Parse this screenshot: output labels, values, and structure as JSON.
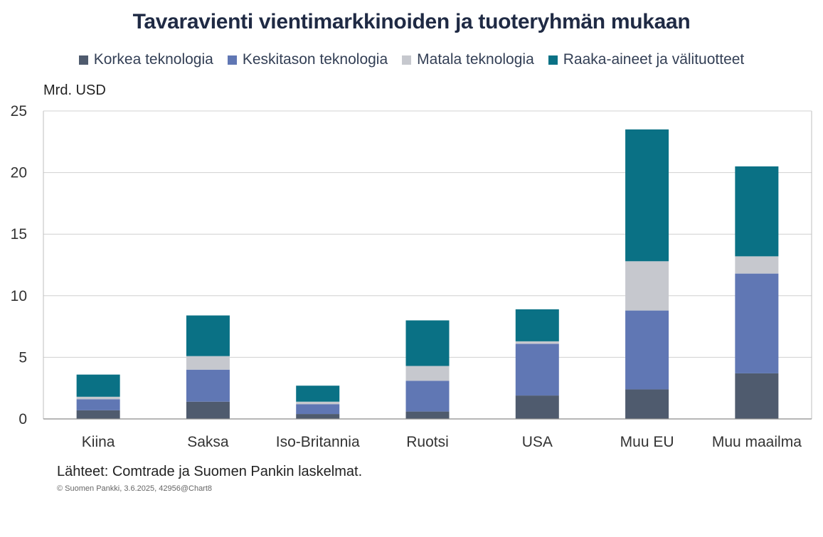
{
  "chart_data": {
    "type": "bar",
    "stacked": true,
    "title": "Tavaravienti vientimarkkinoiden ja tuoteryhmän mukaan",
    "ylabel": "Mrd. USD",
    "ylim": [
      0,
      25
    ],
    "yticks": [
      0,
      5,
      10,
      15,
      20,
      25
    ],
    "grid": true,
    "legend_position": "top",
    "categories": [
      "Kiina",
      "Saksa",
      "Iso-Britannia",
      "Ruotsi",
      "USA",
      "Muu EU",
      "Muu maailma"
    ],
    "series": [
      {
        "name": "Korkea teknologia",
        "color": "#4f5b6e",
        "values": [
          0.7,
          1.4,
          0.4,
          0.6,
          1.9,
          2.4,
          3.7
        ]
      },
      {
        "name": "Keskitason teknologia",
        "color": "#6077b4",
        "values": [
          0.9,
          2.6,
          0.8,
          2.5,
          4.2,
          6.4,
          8.1
        ]
      },
      {
        "name": "Matala teknologia",
        "color": "#c6c8ce",
        "values": [
          0.2,
          1.1,
          0.2,
          1.2,
          0.2,
          4.0,
          1.4
        ]
      },
      {
        "name": "Raaka-aineet ja välituotteet",
        "color": "#0a7185",
        "values": [
          1.8,
          3.3,
          1.3,
          3.7,
          2.6,
          10.7,
          7.3
        ]
      }
    ]
  },
  "source": "Lähteet: Comtrade ja Suomen Pankin laskelmat.",
  "copyright": "© Suomen Pankki, 3.6.2025, 42956@Chart8"
}
